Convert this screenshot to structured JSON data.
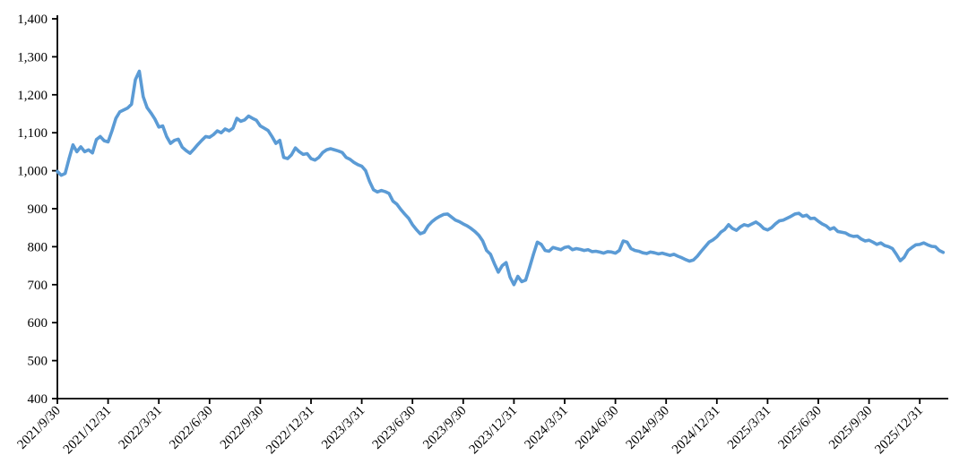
{
  "chart_data": {
    "type": "line",
    "title": "",
    "xlabel": "",
    "ylabel": "",
    "grid": false,
    "legend_position": "none",
    "background_color": "#FFFFFF",
    "axis_color": "#000000",
    "text_color": "#000000",
    "ylim": [
      400,
      1400
    ],
    "y_ticks": [
      400,
      500,
      600,
      700,
      800,
      900,
      1000,
      1100,
      1200,
      1300,
      1400
    ],
    "y_tick_labels": [
      "400",
      "500",
      "600",
      "700",
      "800",
      "900",
      "1,000",
      "1,100",
      "1,200",
      "1,300",
      "1,400"
    ],
    "x_tick_labels": [
      "2021/9/30",
      "2021/12/31",
      "2022/3/31",
      "2022/6/30",
      "2022/9/30",
      "2022/12/31",
      "2023/3/31",
      "2023/6/30",
      "2023/9/30",
      "2023/12/31",
      "2024/3/31",
      "2024/6/30",
      "2024/9/30",
      "2024/12/31",
      "2025/3/31",
      "2025/6/30",
      "2025/9/30",
      "2025/12/31"
    ],
    "x_tick_rotation_deg": -45,
    "series": [
      {
        "name": "",
        "color": "#5B9BD5",
        "points_per_tick_interval": 13,
        "values": [
          998,
          988,
          993,
          1032,
          1068,
          1050,
          1063,
          1050,
          1055,
          1047,
          1082,
          1090,
          1079,
          1076,
          1105,
          1138,
          1155,
          1160,
          1165,
          1175,
          1240,
          1262,
          1195,
          1166,
          1152,
          1136,
          1115,
          1118,
          1090,
          1072,
          1080,
          1083,
          1062,
          1053,
          1046,
          1057,
          1069,
          1080,
          1090,
          1088,
          1095,
          1105,
          1100,
          1110,
          1105,
          1112,
          1138,
          1130,
          1134,
          1144,
          1138,
          1133,
          1118,
          1112,
          1106,
          1090,
          1072,
          1080,
          1035,
          1032,
          1042,
          1060,
          1050,
          1043,
          1045,
          1032,
          1028,
          1035,
          1048,
          1055,
          1058,
          1055,
          1052,
          1048,
          1035,
          1030,
          1022,
          1016,
          1012,
          1000,
          972,
          950,
          944,
          948,
          945,
          940,
          920,
          912,
          898,
          886,
          875,
          858,
          845,
          834,
          838,
          855,
          866,
          874,
          880,
          885,
          886,
          878,
          870,
          866,
          860,
          855,
          848,
          840,
          830,
          815,
          790,
          780,
          755,
          733,
          750,
          758,
          720,
          700,
          722,
          708,
          712,
          745,
          780,
          812,
          806,
          790,
          788,
          798,
          795,
          792,
          798,
          800,
          792,
          795,
          793,
          790,
          792,
          787,
          788,
          786,
          783,
          787,
          786,
          783,
          790,
          815,
          812,
          795,
          790,
          788,
          784,
          782,
          786,
          784,
          781,
          783,
          780,
          777,
          780,
          775,
          771,
          766,
          762,
          765,
          775,
          788,
          800,
          812,
          818,
          826,
          838,
          845,
          858,
          848,
          843,
          852,
          858,
          855,
          860,
          865,
          858,
          848,
          844,
          850,
          860,
          868,
          870,
          875,
          880,
          886,
          888,
          880,
          883,
          874,
          875,
          867,
          860,
          855,
          846,
          850,
          840,
          838,
          836,
          830,
          827,
          828,
          820,
          815,
          817,
          812,
          806,
          810,
          803,
          800,
          795,
          780,
          763,
          772,
          790,
          798,
          805,
          806,
          810,
          805,
          801,
          800,
          790,
          785
        ]
      }
    ]
  }
}
